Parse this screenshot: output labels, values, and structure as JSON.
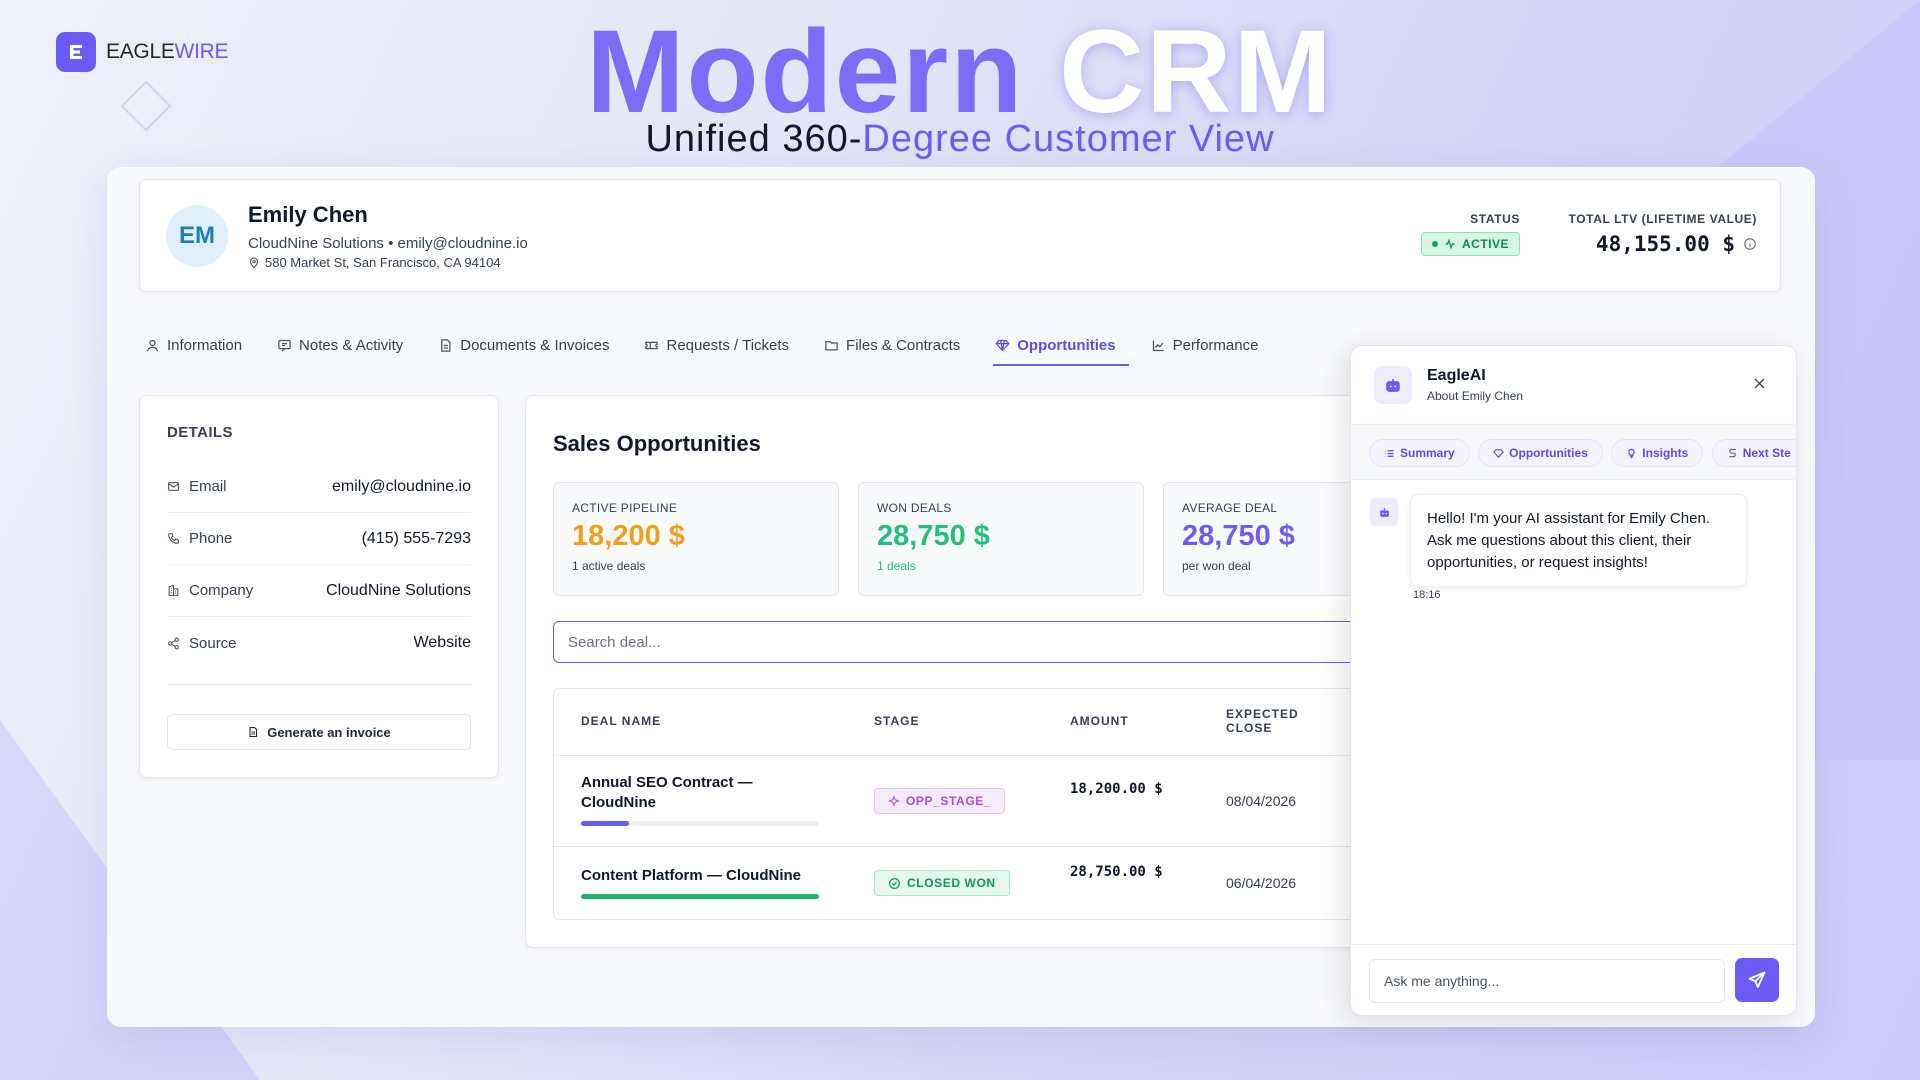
{
  "brand": {
    "name_part1": "EAGLE",
    "name_part2": "WIRE"
  },
  "hero": {
    "title_part1": "Modern",
    "title_part2": "CRM",
    "subtitle_part1": "Unified 360-",
    "subtitle_part2": "Degree Customer View"
  },
  "customer": {
    "initials": "EM",
    "name": "Emily Chen",
    "company_email": "CloudNine Solutions • emily@cloudnine.io",
    "address": "580 Market St, San Francisco, CA 94104",
    "status_label": "STATUS",
    "status_value": "ACTIVE",
    "ltv_label": "TOTAL LTV (LIFETIME VALUE)",
    "ltv_value": "48,155.00 $"
  },
  "tabs": [
    {
      "label": "Information",
      "icon": "user-icon"
    },
    {
      "label": "Notes & Activity",
      "icon": "message-icon"
    },
    {
      "label": "Documents & Invoices",
      "icon": "document-icon"
    },
    {
      "label": "Requests / Tickets",
      "icon": "ticket-icon"
    },
    {
      "label": "Files & Contracts",
      "icon": "folder-icon"
    },
    {
      "label": "Opportunities",
      "icon": "diamond-icon",
      "active": true
    },
    {
      "label": "Performance",
      "icon": "chart-icon"
    }
  ],
  "details": {
    "title": "DETAILS",
    "rows": [
      {
        "label": "Email",
        "value": "emily@cloudnine.io",
        "icon": "mail-icon"
      },
      {
        "label": "Phone",
        "value": "(415) 555-7293",
        "icon": "phone-icon"
      },
      {
        "label": "Company",
        "value": "CloudNine Solutions",
        "icon": "building-icon"
      },
      {
        "label": "Source",
        "value": "Website",
        "icon": "share-icon"
      }
    ],
    "invoice_button": "Generate an invoice"
  },
  "sales": {
    "title": "Sales Opportunities",
    "kpis": [
      {
        "label": "ACTIVE PIPELINE",
        "value": "18,200 $",
        "sub": "1 active deals",
        "color": "#f59e1b"
      },
      {
        "label": "WON DEALS",
        "value": "28,750 $",
        "sub": "1 deals",
        "color": "#22c07a"
      },
      {
        "label": "AVERAGE DEAL",
        "value": "28,750 $",
        "sub": "per won deal",
        "color": "#6b5cf6"
      }
    ],
    "search_placeholder": "Search deal...",
    "columns": {
      "deal": "DEAL NAME",
      "stage": "STAGE",
      "amount": "AMOUNT",
      "close": "EXPECTED CLOSE"
    },
    "deals": [
      {
        "name": "Annual SEO Contract — CloudNine",
        "stage": "OPP_STAGE_",
        "amount": "18,200.00 $",
        "close": "08/04/2026",
        "progress": 0.2,
        "progress_color": "#6b5cf6"
      },
      {
        "name": "Content Platform — CloudNine",
        "stage": "CLOSED WON",
        "amount": "28,750.00 $",
        "close": "06/04/2026",
        "progress": 1.0,
        "progress_color": "#1bb36f"
      }
    ]
  },
  "ai": {
    "title": "EagleAI",
    "subtitle": "About Emily Chen",
    "chips": [
      "Summary",
      "Opportunities",
      "Insights",
      "Next Ste"
    ],
    "message": "Hello! I'm your AI assistant for Emily Chen. Ask me questions about this client, their opportunities, or request insights!",
    "time": "18:16",
    "input_placeholder": "Ask me anything..."
  }
}
